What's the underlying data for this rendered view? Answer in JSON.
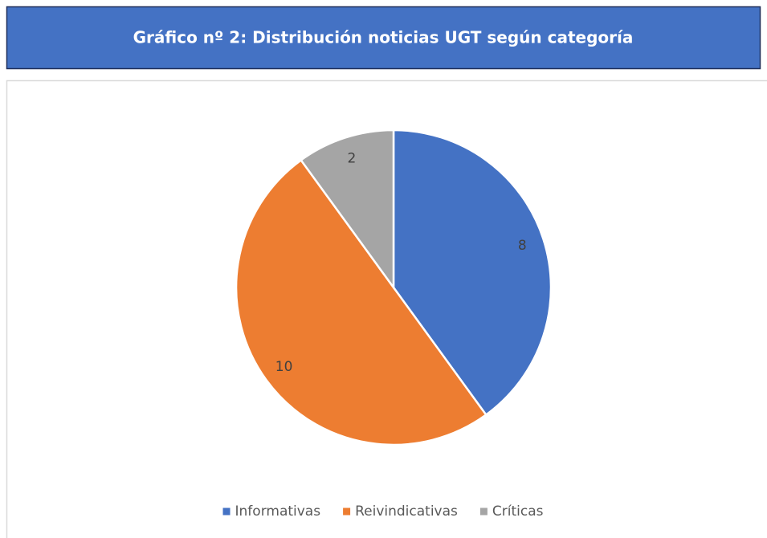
{
  "chart_data": {
    "type": "pie",
    "title": "Gráfico nº 2: Distribución noticias UGT según categoría",
    "categories": [
      "Informativas",
      "Reivindicativas",
      "Críticas"
    ],
    "values": [
      8,
      10,
      2
    ],
    "colors": [
      "#4472c4",
      "#ed7d31",
      "#a5a5a5"
    ],
    "legend": "bottom"
  }
}
